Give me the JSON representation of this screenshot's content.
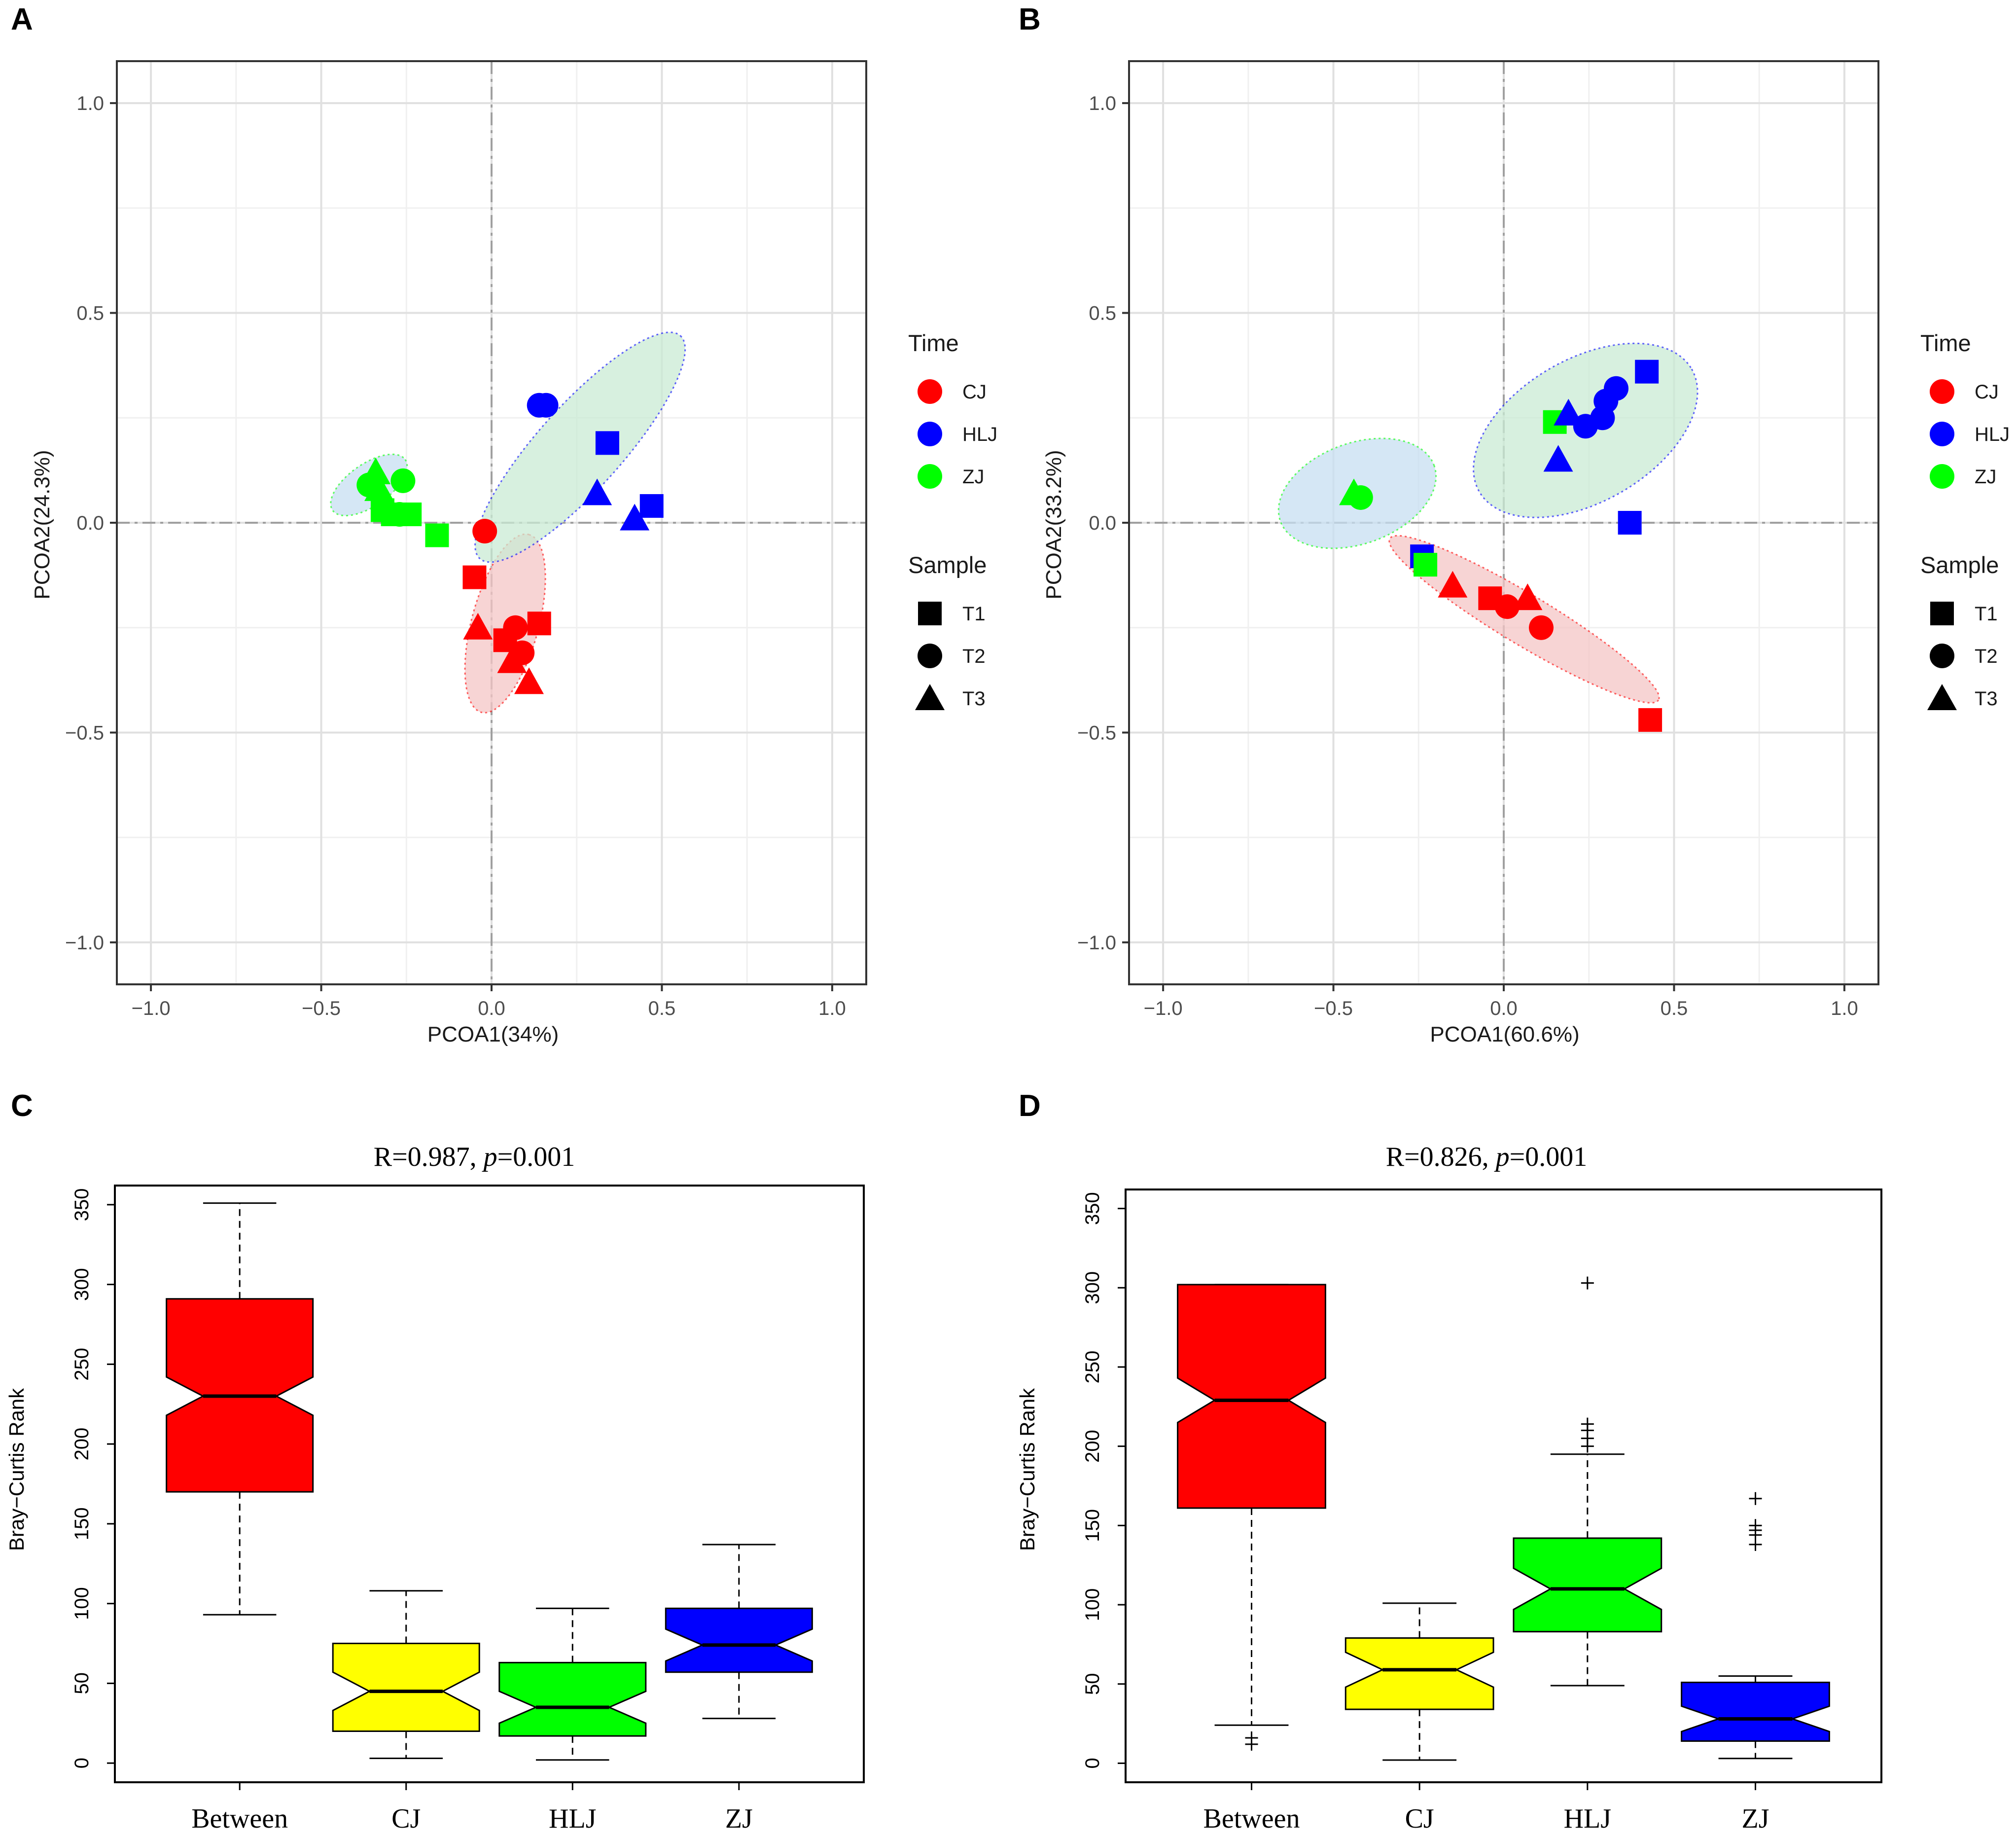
{
  "chart_data": [
    {
      "panel_label": "A",
      "type": "scatter",
      "xlabel": "PCOA1(34%)",
      "ylabel": "PCOA2(24.3%)",
      "xlim": [
        -1.1,
        1.1
      ],
      "ylim": [
        -1.1,
        1.1
      ],
      "ticks": [
        -1.0,
        -0.5,
        0.0,
        0.5,
        1.0
      ],
      "tick_labels": [
        "−1.0",
        "−0.5",
        "0.0",
        "0.5",
        "1.0"
      ],
      "colors": {
        "CJ": "#ff0000",
        "HLJ": "#0000ff",
        "ZJ": "#00ff00"
      },
      "legend": {
        "color_title": "Time",
        "color_items": [
          "CJ",
          "HLJ",
          "ZJ"
        ],
        "shape_title": "Sample",
        "shape_items": [
          "T1",
          "T2",
          "T3"
        ],
        "shape_symbols": [
          "square",
          "circle",
          "triangle"
        ]
      },
      "ellipses": [
        {
          "group": "ZJ",
          "fill": "#c7dff2",
          "center": [
            -0.36,
            0.09
          ],
          "rx": 0.13,
          "ry": 0.05,
          "angle_deg": -35
        },
        {
          "group": "CJ",
          "fill": "#f4c6c6",
          "center": [
            0.04,
            -0.24
          ],
          "rx": 0.27,
          "ry": 0.08,
          "angle_deg": -75
        },
        {
          "group": "HLJ",
          "fill": "#c9ebd4",
          "center": [
            0.26,
            0.18
          ],
          "rx": 0.44,
          "ry": 0.1,
          "angle_deg": -48
        }
      ],
      "points": [
        {
          "group": "ZJ",
          "shape": "triangle",
          "x": -0.34,
          "y": 0.12
        },
        {
          "group": "ZJ",
          "shape": "circle",
          "x": -0.36,
          "y": 0.09
        },
        {
          "group": "ZJ",
          "shape": "triangle",
          "x": -0.33,
          "y": 0.08
        },
        {
          "group": "ZJ",
          "shape": "circle",
          "x": -0.26,
          "y": 0.1
        },
        {
          "group": "ZJ",
          "shape": "square",
          "x": -0.32,
          "y": 0.03
        },
        {
          "group": "ZJ",
          "shape": "square",
          "x": -0.29,
          "y": 0.02
        },
        {
          "group": "ZJ",
          "shape": "circle",
          "x": -0.27,
          "y": 0.02
        },
        {
          "group": "ZJ",
          "shape": "square",
          "x": -0.24,
          "y": 0.02
        },
        {
          "group": "ZJ",
          "shape": "square",
          "x": -0.16,
          "y": -0.03
        },
        {
          "group": "CJ",
          "shape": "circle",
          "x": -0.02,
          "y": -0.02
        },
        {
          "group": "CJ",
          "shape": "square",
          "x": -0.05,
          "y": -0.13
        },
        {
          "group": "CJ",
          "shape": "triangle",
          "x": -0.04,
          "y": -0.25
        },
        {
          "group": "CJ",
          "shape": "square",
          "x": 0.04,
          "y": -0.28
        },
        {
          "group": "CJ",
          "shape": "circle",
          "x": 0.07,
          "y": -0.25
        },
        {
          "group": "CJ",
          "shape": "square",
          "x": 0.14,
          "y": -0.24
        },
        {
          "group": "CJ",
          "shape": "circle",
          "x": 0.09,
          "y": -0.31
        },
        {
          "group": "CJ",
          "shape": "triangle",
          "x": 0.06,
          "y": -0.33
        },
        {
          "group": "CJ",
          "shape": "triangle",
          "x": 0.11,
          "y": -0.38
        },
        {
          "group": "HLJ",
          "shape": "circle",
          "x": 0.14,
          "y": 0.28
        },
        {
          "group": "HLJ",
          "shape": "circle",
          "x": 0.16,
          "y": 0.28
        },
        {
          "group": "HLJ",
          "shape": "square",
          "x": 0.34,
          "y": 0.19
        },
        {
          "group": "HLJ",
          "shape": "triangle",
          "x": 0.31,
          "y": 0.07
        },
        {
          "group": "HLJ",
          "shape": "square",
          "x": 0.47,
          "y": 0.04
        },
        {
          "group": "HLJ",
          "shape": "triangle",
          "x": 0.42,
          "y": 0.01
        }
      ]
    },
    {
      "panel_label": "B",
      "type": "scatter",
      "xlabel": "PCOA1(60.6%)",
      "ylabel": "PCOA2(33.2%)",
      "xlim": [
        -1.1,
        1.1
      ],
      "ylim": [
        -1.1,
        1.1
      ],
      "ticks": [
        -1.0,
        -0.5,
        0.0,
        0.5,
        1.0
      ],
      "tick_labels": [
        "−1.0",
        "−0.5",
        "0.0",
        "0.5",
        "1.0"
      ],
      "colors": {
        "CJ": "#ff0000",
        "HLJ": "#0000ff",
        "ZJ": "#00ff00"
      },
      "legend": {
        "color_title": "Time",
        "color_items": [
          "CJ",
          "HLJ",
          "ZJ"
        ],
        "shape_title": "Sample",
        "shape_items": [
          "T1",
          "T2",
          "T3"
        ],
        "shape_symbols": [
          "square",
          "circle",
          "triangle"
        ]
      },
      "ellipses": [
        {
          "group": "ZJ",
          "fill": "#c7dff2",
          "center": [
            -0.43,
            0.07
          ],
          "rx": 0.24,
          "ry": 0.12,
          "angle_deg": -20
        },
        {
          "group": "CJ",
          "fill": "#f4c6c6",
          "center": [
            0.06,
            -0.23
          ],
          "rx": 0.46,
          "ry": 0.06,
          "angle_deg": 31
        },
        {
          "group": "HLJ",
          "fill": "#c9ebd4",
          "center": [
            0.24,
            0.22
          ],
          "rx": 0.36,
          "ry": 0.17,
          "angle_deg": -30
        }
      ],
      "points": [
        {
          "group": "ZJ",
          "shape": "circle",
          "x": -0.42,
          "y": 0.06
        },
        {
          "group": "ZJ",
          "shape": "triangle",
          "x": -0.44,
          "y": 0.07
        },
        {
          "group": "HLJ",
          "shape": "square",
          "x": -0.24,
          "y": -0.08
        },
        {
          "group": "ZJ",
          "shape": "square",
          "x": -0.23,
          "y": -0.1
        },
        {
          "group": "CJ",
          "shape": "triangle",
          "x": -0.15,
          "y": -0.15
        },
        {
          "group": "CJ",
          "shape": "square",
          "x": -0.04,
          "y": -0.18
        },
        {
          "group": "CJ",
          "shape": "circle",
          "x": 0.01,
          "y": -0.2
        },
        {
          "group": "CJ",
          "shape": "triangle",
          "x": 0.07,
          "y": -0.18
        },
        {
          "group": "CJ",
          "shape": "circle",
          "x": 0.11,
          "y": -0.25
        },
        {
          "group": "CJ",
          "shape": "square",
          "x": 0.43,
          "y": -0.47
        },
        {
          "group": "ZJ",
          "shape": "square",
          "x": 0.15,
          "y": 0.24
        },
        {
          "group": "HLJ",
          "shape": "triangle",
          "x": 0.16,
          "y": 0.15
        },
        {
          "group": "HLJ",
          "shape": "triangle",
          "x": 0.19,
          "y": 0.26
        },
        {
          "group": "HLJ",
          "shape": "circle",
          "x": 0.24,
          "y": 0.23
        },
        {
          "group": "HLJ",
          "shape": "circle",
          "x": 0.29,
          "y": 0.25
        },
        {
          "group": "HLJ",
          "shape": "circle",
          "x": 0.3,
          "y": 0.29
        },
        {
          "group": "HLJ",
          "shape": "circle",
          "x": 0.33,
          "y": 0.32
        },
        {
          "group": "HLJ",
          "shape": "square",
          "x": 0.42,
          "y": 0.36
        },
        {
          "group": "HLJ",
          "shape": "square",
          "x": 0.37,
          "y": 0.0
        }
      ]
    },
    {
      "panel_label": "C",
      "type": "box",
      "title_prefix": "R=0.987, ",
      "title_italic": "p",
      "title_suffix": "=0.001",
      "ylabel": "Bray−Curtis Rank",
      "ylim": [
        -12,
        362
      ],
      "yticks": [
        0,
        50,
        100,
        150,
        200,
        250,
        300,
        350
      ],
      "categories": [
        "Between",
        "CJ",
        "HLJ",
        "ZJ"
      ],
      "colors": [
        "#ff0000",
        "#ffff00",
        "#00ff00",
        "#0000ff"
      ],
      "boxes": [
        {
          "whisker_low": 93,
          "q1": 170,
          "median": 230,
          "q3": 291,
          "whisker_high": 351,
          "notch_low": 218,
          "notch_high": 242,
          "outliers": []
        },
        {
          "whisker_low": 3,
          "q1": 20,
          "median": 45,
          "q3": 75,
          "whisker_high": 108,
          "notch_low": 33,
          "notch_high": 57,
          "outliers": []
        },
        {
          "whisker_low": 2,
          "q1": 17,
          "median": 35,
          "q3": 63,
          "whisker_high": 97,
          "notch_low": 25,
          "notch_high": 45,
          "outliers": []
        },
        {
          "whisker_low": 28,
          "q1": 57,
          "median": 74,
          "q3": 97,
          "whisker_high": 137,
          "notch_low": 64,
          "notch_high": 84,
          "outliers": []
        }
      ]
    },
    {
      "panel_label": "D",
      "type": "box",
      "title_prefix": "R=0.826, ",
      "title_italic": "p",
      "title_suffix": "=0.001",
      "ylabel": "Bray−Curtis Rank",
      "ylim": [
        -12,
        362
      ],
      "yticks": [
        0,
        50,
        100,
        150,
        200,
        250,
        300,
        350
      ],
      "categories": [
        "Between",
        "CJ",
        "HLJ",
        "ZJ"
      ],
      "colors": [
        "#ff0000",
        "#ffff00",
        "#00ff00",
        "#0000ff"
      ],
      "boxes": [
        {
          "whisker_low": 24,
          "q1": 161,
          "median": 229,
          "q3": 302,
          "whisker_high": 302,
          "notch_low": 215,
          "notch_high": 243,
          "outliers": [
            12,
            16
          ]
        },
        {
          "whisker_low": 2,
          "q1": 34,
          "median": 59,
          "q3": 79,
          "whisker_high": 101,
          "notch_low": 48,
          "notch_high": 70,
          "outliers": []
        },
        {
          "whisker_low": 49,
          "q1": 83,
          "median": 110,
          "q3": 142,
          "whisker_high": 195,
          "notch_low": 97,
          "notch_high": 123,
          "outliers": [
            200,
            205,
            210,
            214,
            303
          ]
        },
        {
          "whisker_low": 3,
          "q1": 14,
          "median": 28,
          "q3": 51,
          "whisker_high": 55,
          "notch_low": 20,
          "notch_high": 36,
          "outliers": [
            138,
            144,
            147,
            150,
            167
          ]
        }
      ]
    }
  ]
}
